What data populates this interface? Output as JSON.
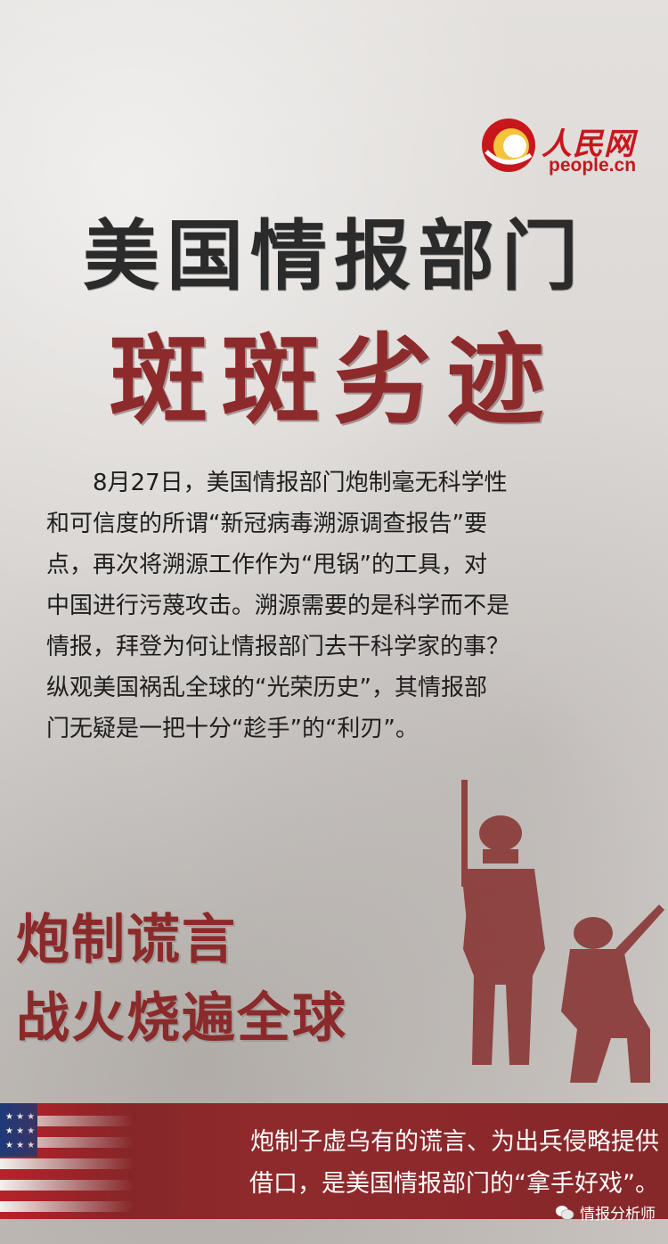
{
  "logo": {
    "brand_cn": "人民网",
    "brand_en": "people.cn",
    "icon": "people-daily-logo-icon",
    "color": "#c8161d"
  },
  "title": {
    "line1": "美国情报部门",
    "line2": "斑斑劣迹"
  },
  "body": {
    "paragraph": [
      "8月27日，美国情报部门炮制毫无科学性",
      "和可信度的所谓“新冠病毒溯源调查报告”要",
      "点，再次将溯源工作作为“甩锅”的工具，对",
      "中国进行污蔑攻击。溯源需要的是科学而不是",
      "情报，拜登为何让情报部门去干科学家的事？",
      "纵观美国祸乱全球的“光荣历史”，其情报部",
      "门无疑是一把十分“趁手”的“利刃”。"
    ]
  },
  "slogan": {
    "line1": "炮制谎言",
    "line2": "战火烧遍全球"
  },
  "banner": {
    "line1": "炮制子虚乌有的谎言、为出兵侵略提供",
    "line2": "借口，是美国情报部门的“拿手好戏”。"
  },
  "watermark": {
    "text": "情报分析师",
    "icon": "wechat-icon"
  },
  "colors": {
    "accent_red": "#8b2a2a",
    "banner_red": "#86272a",
    "title_dark": "#2b2b2b"
  }
}
